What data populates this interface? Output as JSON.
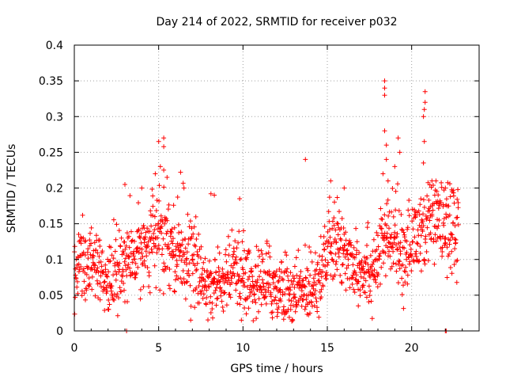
{
  "chart_data": {
    "type": "scatter",
    "title": "Day 214 of 2022, SRMTID for receiver p032",
    "xlabel": "GPS time / hours",
    "ylabel": "SRMTID / TECUs",
    "xlim": [
      0,
      24
    ],
    "ylim": [
      0,
      0.4
    ],
    "xticks": [
      0,
      5,
      10,
      15,
      20
    ],
    "xtick_labels": [
      "0",
      "5",
      "10",
      "15",
      "20"
    ],
    "yticks": [
      0,
      0.05,
      0.1,
      0.15,
      0.2,
      0.25,
      0.3,
      0.35,
      0.4
    ],
    "ytick_labels": [
      "0",
      "0.05",
      "0.1",
      "0.15",
      "0.2",
      "0.25",
      "0.3",
      "0.35",
      "0.4"
    ],
    "grid": true,
    "marker": "+",
    "color": "#ff0000",
    "trend": {
      "x": [
        0,
        0.5,
        1,
        1.5,
        2,
        2.5,
        3,
        3.5,
        4,
        4.5,
        5,
        5.5,
        6,
        6.5,
        7,
        7.5,
        8,
        8.5,
        9,
        9.5,
        10,
        10.5,
        11,
        11.5,
        12,
        12.5,
        13,
        13.5,
        14,
        14.5,
        15,
        15.5,
        16,
        16.5,
        17,
        17.5,
        18,
        18.5,
        19,
        19.5,
        20,
        20.5,
        21,
        21.5,
        22,
        22.5,
        22.8
      ],
      "y": [
        0.085,
        0.1,
        0.09,
        0.075,
        0.065,
        0.085,
        0.095,
        0.1,
        0.115,
        0.125,
        0.135,
        0.13,
        0.115,
        0.11,
        0.1,
        0.075,
        0.06,
        0.065,
        0.075,
        0.08,
        0.07,
        0.065,
        0.07,
        0.07,
        0.06,
        0.06,
        0.055,
        0.055,
        0.065,
        0.08,
        0.11,
        0.12,
        0.11,
        0.1,
        0.09,
        0.085,
        0.1,
        0.13,
        0.125,
        0.11,
        0.12,
        0.14,
        0.15,
        0.155,
        0.145,
        0.14,
        0.15
      ]
    },
    "spread_sd": 0.025,
    "point_count": 1450,
    "outliers": [
      {
        "x": 18.4,
        "y": 0.35
      },
      {
        "x": 18.4,
        "y": 0.34
      },
      {
        "x": 18.4,
        "y": 0.33
      },
      {
        "x": 18.4,
        "y": 0.28
      },
      {
        "x": 18.5,
        "y": 0.26
      },
      {
        "x": 18.3,
        "y": 0.22
      },
      {
        "x": 18.6,
        "y": 0.21
      },
      {
        "x": 18.5,
        "y": 0.24
      },
      {
        "x": 20.8,
        "y": 0.335
      },
      {
        "x": 20.8,
        "y": 0.32
      },
      {
        "x": 20.75,
        "y": 0.31
      },
      {
        "x": 20.7,
        "y": 0.3
      },
      {
        "x": 20.75,
        "y": 0.265
      },
      {
        "x": 20.7,
        "y": 0.235
      },
      {
        "x": 19.2,
        "y": 0.27
      },
      {
        "x": 19.3,
        "y": 0.25
      },
      {
        "x": 19.0,
        "y": 0.23
      },
      {
        "x": 5.0,
        "y": 0.265
      },
      {
        "x": 5.3,
        "y": 0.27
      },
      {
        "x": 5.3,
        "y": 0.258
      },
      {
        "x": 5.1,
        "y": 0.23
      },
      {
        "x": 5.3,
        "y": 0.225
      },
      {
        "x": 4.8,
        "y": 0.22
      },
      {
        "x": 5.5,
        "y": 0.215
      },
      {
        "x": 6.3,
        "y": 0.222
      },
      {
        "x": 3.0,
        "y": 0.205
      },
      {
        "x": 4.0,
        "y": 0.2
      },
      {
        "x": 6.5,
        "y": 0.2
      },
      {
        "x": 13.7,
        "y": 0.24
      },
      {
        "x": 8.1,
        "y": 0.192
      },
      {
        "x": 8.3,
        "y": 0.19
      },
      {
        "x": 9.8,
        "y": 0.185
      },
      {
        "x": 15.2,
        "y": 0.21
      },
      {
        "x": 16.0,
        "y": 0.2
      },
      {
        "x": 21.2,
        "y": 0.21
      },
      {
        "x": 22.0,
        "y": 0.2
      },
      {
        "x": 22.4,
        "y": 0.195
      },
      {
        "x": 3.1,
        "y": 0.0
      },
      {
        "x": 22.0,
        "y": 0.0
      },
      {
        "x": 22.05,
        "y": 0.0
      }
    ]
  }
}
